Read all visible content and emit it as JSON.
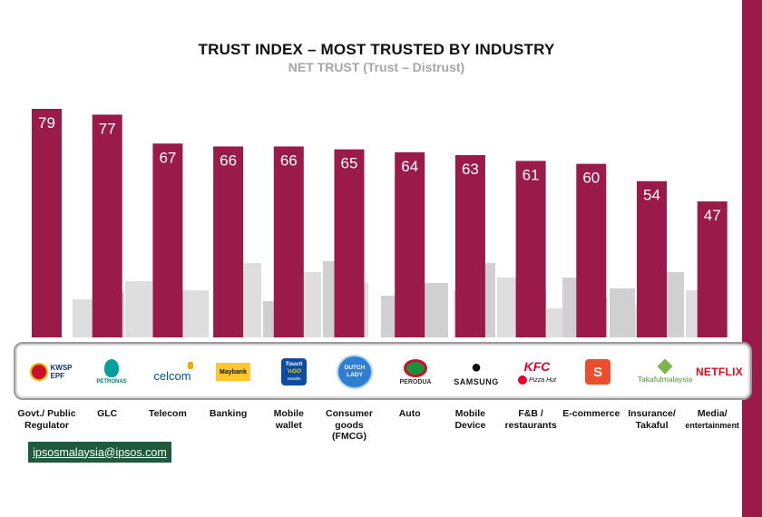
{
  "title": "TRUST INDEX – MOST TRUSTED BY INDUSTRY",
  "subtitle": "NET TRUST (Trust – Distrust)",
  "contact_email": "ipsosmalaysia@ipsos.com",
  "colors": {
    "bar": "#9a1b4a",
    "skyline": "#d9d9d9",
    "side_band": "#9a1b4a",
    "email_bg": "#1e5b3c"
  },
  "chart_data": {
    "type": "bar",
    "title": "TRUST INDEX – MOST TRUSTED BY INDUSTRY",
    "subtitle": "NET TRUST (Trust – Distrust)",
    "categories": [
      "Govt./ Public Regulator",
      "GLC",
      "Telecom",
      "Banking",
      "Mobile wallet",
      "Consumer goods (FMCG)",
      "Auto",
      "Mobile Device",
      "F&B / restaurants",
      "E-commerce",
      "Insurance/ Takaful",
      "Media/ entertainment"
    ],
    "values": [
      79,
      77,
      67,
      66,
      66,
      65,
      64,
      63,
      61,
      60,
      54,
      47
    ],
    "ylim": [
      0,
      79
    ],
    "xlabel": "",
    "ylabel": "",
    "data_labels": true
  },
  "category_labels": [
    {
      "line1": "Govt./ Public",
      "line2": "Regulator",
      "line3": ""
    },
    {
      "line1": "GLC",
      "line2": "",
      "line3": ""
    },
    {
      "line1": "Telecom",
      "line2": "",
      "line3": ""
    },
    {
      "line1": "Banking",
      "line2": "",
      "line3": ""
    },
    {
      "line1": "Mobile",
      "line2": "wallet",
      "line3": ""
    },
    {
      "line1": "Consumer",
      "line2": "goods",
      "line3": "(FMCG)"
    },
    {
      "line1": "Auto",
      "line2": "",
      "line3": ""
    },
    {
      "line1": "Mobile",
      "line2": "Device",
      "line3": ""
    },
    {
      "line1": "F&B /",
      "line2": "restaurants",
      "line3": ""
    },
    {
      "line1": "E-commerce",
      "line2": "",
      "line3": ""
    },
    {
      "line1": "Insurance/",
      "line2": "Takaful",
      "line3": ""
    },
    {
      "line1": "Media/",
      "line2": "entertainment",
      "line3": ""
    }
  ],
  "logos": {
    "kwsp_line1": "KWSP",
    "kwsp_line2": "EPF",
    "petronas": "PETRONAS",
    "celcom": "celcom",
    "maybank": "Maybank",
    "touchngo_line1": "Touch",
    "touchngo_line2": "'nGO",
    "touchngo_line3": "eWallet",
    "dutchlady_line1": "DUTCH",
    "dutchlady_line2": "LADY",
    "perodua": "PERODUA",
    "samsung": "SAMSUNG",
    "kfc": "KFC",
    "pizzahut": "Pizza Hut",
    "takaful": "Takafulmalaysia",
    "netflix": "NETFLIX"
  }
}
